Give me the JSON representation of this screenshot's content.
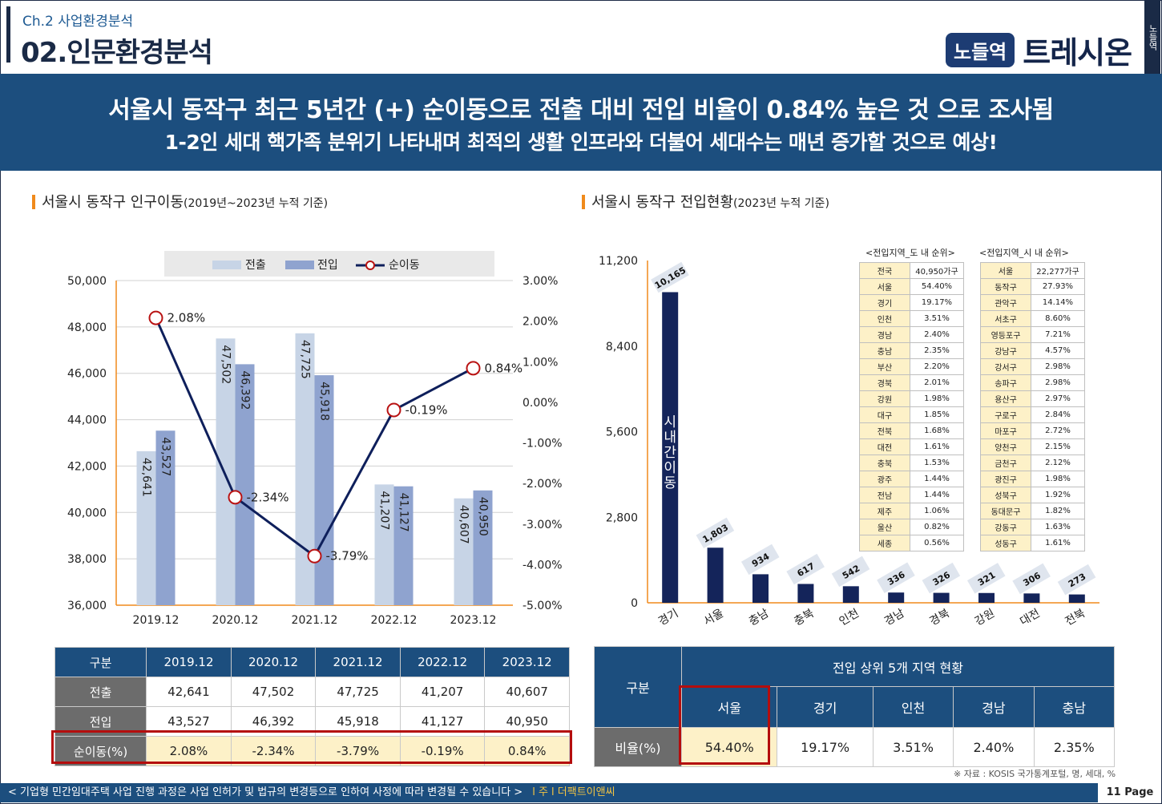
{
  "header": {
    "chapter": "Ch.2 사업환경분석",
    "title": "02.인문환경분석",
    "logo_badge": "노들역",
    "logo_text": "트레시온",
    "side_tab": "노들역"
  },
  "banner": {
    "line1": "서울시 동작구 최근 5년간 (+) 순이동으로 전출 대비 전입 비율이 0.84% 높은 것 으로 조사됨",
    "line2": "1-2인 세대 핵가족 분위기 나타내며 최적의 생활 인프라와 더불어 세대수는 매년 증가할 것으로 예상!"
  },
  "left_section": {
    "title": "서울시 동작구 인구이동",
    "subtitle": "(2019년~2023년 누적 기준)"
  },
  "right_section": {
    "title": "서울시 동작구 전입현황",
    "subtitle": "(2023년 누적 기준)"
  },
  "chart_data": [
    {
      "type": "bar",
      "categories": [
        "2019.12",
        "2020.12",
        "2021.12",
        "2022.12",
        "2023.12"
      ],
      "series": [
        {
          "name": "전출",
          "values": [
            42641,
            47502,
            47725,
            41207,
            40607
          ],
          "color": "#c7d4e6"
        },
        {
          "name": "전입",
          "values": [
            43527,
            46392,
            45918,
            41127,
            40950
          ],
          "color": "#8fa3cf"
        },
        {
          "name": "순이동",
          "type": "line",
          "axis": "right",
          "values": [
            2.08,
            -2.34,
            -3.79,
            -0.19,
            0.84
          ],
          "color": "#0e1f5b"
        }
      ],
      "bar_labels": [
        [
          "42,641",
          "47,502",
          "47,725",
          "41,207",
          "40,607"
        ],
        [
          "43,527",
          "46,392",
          "45,918",
          "41,127",
          "40,950"
        ]
      ],
      "line_labels": [
        "2.08%",
        "-2.34%",
        "-3.79%",
        "-0.19%",
        "0.84%"
      ],
      "ylim": [
        36000,
        50000
      ],
      "y_ticks": [
        "36,000",
        "38,000",
        "40,000",
        "42,000",
        "44,000",
        "46,000",
        "48,000",
        "50,000"
      ],
      "y2lim": [
        -5,
        3
      ],
      "y2_ticks": [
        "-5.00%",
        "-4.00%",
        "-3.00%",
        "-2.00%",
        "-1.00%",
        "0.00%",
        "1.00%",
        "2.00%",
        "3.00%"
      ],
      "legend": "top"
    },
    {
      "type": "bar",
      "categories": [
        "경기",
        "서울",
        "충남",
        "충북",
        "인천",
        "경남",
        "경북",
        "강원",
        "대전",
        "전북"
      ],
      "values": [
        10165,
        1803,
        934,
        617,
        542,
        336,
        326,
        321,
        306,
        273
      ],
      "value_labels": [
        "10,165",
        "1,803",
        "934",
        "617",
        "542",
        "336",
        "326",
        "321",
        "306",
        "273"
      ],
      "ylim": [
        0,
        11200
      ],
      "y_ticks": [
        "0",
        "2,800",
        "5,600",
        "8,400",
        "11,200"
      ],
      "bar_annotation": "시내간이동",
      "color": "#14245a"
    }
  ],
  "mini_table_do": {
    "title": "<전입지역_도 내 순위>",
    "rows": [
      [
        "전국",
        "40,950가구"
      ],
      [
        "서울",
        "54.40%"
      ],
      [
        "경기",
        "19.17%"
      ],
      [
        "인천",
        "3.51%"
      ],
      [
        "경남",
        "2.40%"
      ],
      [
        "충남",
        "2.35%"
      ],
      [
        "부산",
        "2.20%"
      ],
      [
        "경북",
        "2.01%"
      ],
      [
        "강원",
        "1.98%"
      ],
      [
        "대구",
        "1.85%"
      ],
      [
        "전북",
        "1.68%"
      ],
      [
        "대전",
        "1.61%"
      ],
      [
        "충북",
        "1.53%"
      ],
      [
        "광주",
        "1.44%"
      ],
      [
        "전남",
        "1.44%"
      ],
      [
        "제주",
        "1.06%"
      ],
      [
        "울산",
        "0.82%"
      ],
      [
        "세종",
        "0.56%"
      ]
    ]
  },
  "mini_table_si": {
    "title": "<전입지역_시 내 순위>",
    "rows": [
      [
        "서울",
        "22,277가구"
      ],
      [
        "동작구",
        "27.93%"
      ],
      [
        "관악구",
        "14.14%"
      ],
      [
        "서초구",
        "8.60%"
      ],
      [
        "영등포구",
        "7.21%"
      ],
      [
        "강남구",
        "4.57%"
      ],
      [
        "강서구",
        "2.98%"
      ],
      [
        "송파구",
        "2.98%"
      ],
      [
        "용산구",
        "2.97%"
      ],
      [
        "구로구",
        "2.84%"
      ],
      [
        "마포구",
        "2.72%"
      ],
      [
        "양천구",
        "2.15%"
      ],
      [
        "금천구",
        "2.12%"
      ],
      [
        "광진구",
        "1.98%"
      ],
      [
        "성북구",
        "1.92%"
      ],
      [
        "동대문구",
        "1.82%"
      ],
      [
        "강동구",
        "1.63%"
      ],
      [
        "성동구",
        "1.61%"
      ]
    ]
  },
  "table_left": {
    "header": [
      "구분",
      "2019.12",
      "2020.12",
      "2021.12",
      "2022.12",
      "2023.12"
    ],
    "rows": [
      [
        "전출",
        "42,641",
        "47,502",
        "47,725",
        "41,207",
        "40,607"
      ],
      [
        "전입",
        "43,527",
        "46,392",
        "45,918",
        "41,127",
        "40,950"
      ],
      [
        "순이동(%)",
        "2.08%",
        "-2.34%",
        "-3.79%",
        "-0.19%",
        "0.84%"
      ]
    ]
  },
  "table_right": {
    "corner": "구분",
    "group_title": "전입 상위 5개 지역 현황",
    "regions": [
      "서울",
      "경기",
      "인천",
      "경남",
      "충남"
    ],
    "row_label": "비율(%)",
    "values": [
      "54.40%",
      "19.17%",
      "3.51%",
      "2.40%",
      "2.35%"
    ]
  },
  "source": "※ 자료 : KOSIS 국가통계포털, 명, 세대, %",
  "footer": {
    "notice": "< 기업형 민간임대주택 사업 진행 과정은 사업 인허가 및 법규의 변경등으로 인하여 사정에 따라 변경될 수 있습니다 >",
    "company": "l 주 l 더팩트이앤씨",
    "page": "11 Page"
  }
}
